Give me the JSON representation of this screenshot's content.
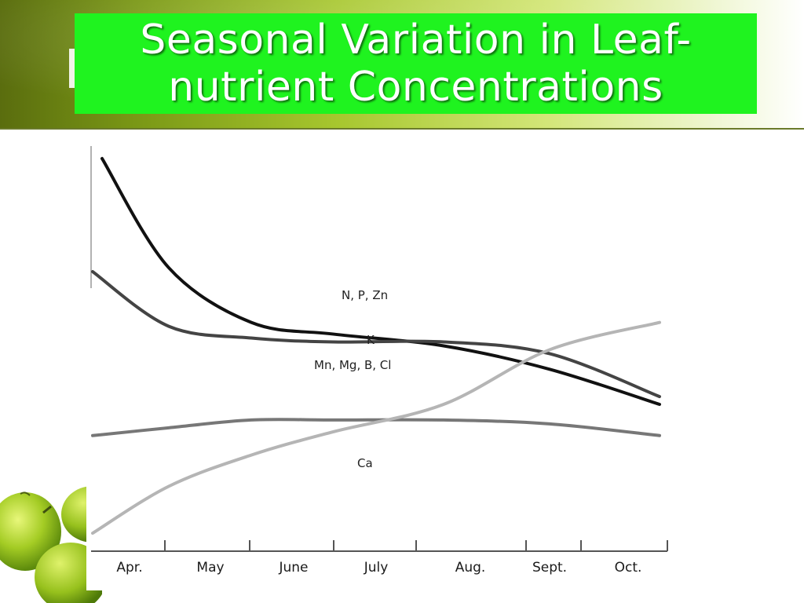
{
  "title": "Seasonal Variation in Leaf-nutrient Concentrations",
  "title_lines": [
    "Seasonal Variation in Leaf-",
    "nutrient Concentrations"
  ],
  "colors": {
    "title_box": "#1ff31f",
    "band_dark": "#5a6d0e",
    "band_light": "#d3e678"
  },
  "chart_data": {
    "type": "line",
    "title": "",
    "xlabel": "",
    "ylabel": "",
    "categories": [
      "Apr.",
      "May",
      "June",
      "July",
      "Aug.",
      "Sept.",
      "Oct."
    ],
    "grid": false,
    "legend": "none (series labeled directly on lines)",
    "series": [
      {
        "name": "N, P, Zn",
        "color": "#111111",
        "values": [
          0.97,
          0.69,
          0.55,
          0.52,
          0.49,
          0.43,
          0.34
        ]
      },
      {
        "name": "K",
        "color": "#444444",
        "values": [
          0.68,
          0.54,
          0.51,
          0.5,
          0.5,
          0.47,
          0.36
        ]
      },
      {
        "name": "Mn, Mg, B, Cl",
        "color": "#777777",
        "values": [
          0.26,
          0.28,
          0.3,
          0.3,
          0.3,
          0.29,
          0.26
        ]
      },
      {
        "name": "Ca",
        "color": "#b5b5b5",
        "values": [
          0.01,
          0.13,
          0.21,
          0.27,
          0.34,
          0.48,
          0.55
        ]
      }
    ]
  }
}
